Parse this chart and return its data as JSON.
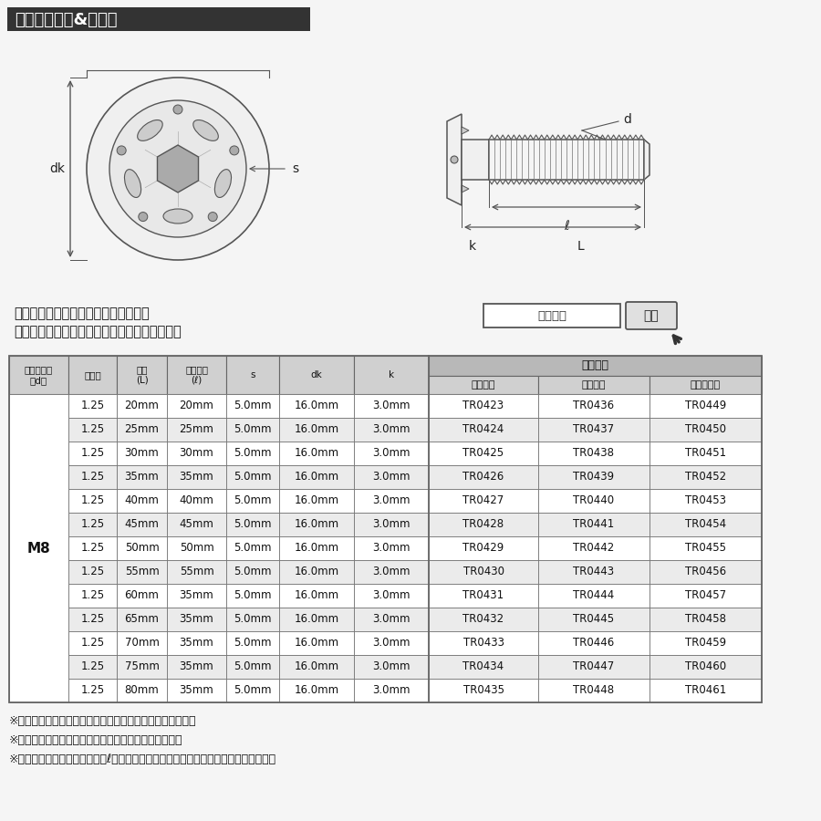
{
  "title": "ラインアップ&サイズ",
  "title_bg": "#333333",
  "title_color": "#ffffff",
  "bg_color": "#f5f5f5",
  "search_text1": "ストア内検索に商品番号を入力すると",
  "search_text2": "　　お探しの商品に素早くアクセスできます。",
  "search_box_label": "商品番号",
  "search_btn_label": "検索",
  "table_header_touten": "当店品番",
  "table_headers_left": [
    "ネジの呼び\n（d）",
    "ピッチ",
    "長さ\n(L)",
    "ネジ長さ\n(ℓ)",
    "s",
    "dk",
    "k"
  ],
  "table_headers_right": [
    "シルバー",
    "ゴールド",
    "焼きチタン"
  ],
  "row_label": "M8",
  "rows": [
    [
      "1.25",
      "20mm",
      "20mm",
      "5.0mm",
      "16.0mm",
      "3.0mm",
      "TR0423",
      "TR0436",
      "TR0449"
    ],
    [
      "1.25",
      "25mm",
      "25mm",
      "5.0mm",
      "16.0mm",
      "3.0mm",
      "TR0424",
      "TR0437",
      "TR0450"
    ],
    [
      "1.25",
      "30mm",
      "30mm",
      "5.0mm",
      "16.0mm",
      "3.0mm",
      "TR0425",
      "TR0438",
      "TR0451"
    ],
    [
      "1.25",
      "35mm",
      "35mm",
      "5.0mm",
      "16.0mm",
      "3.0mm",
      "TR0426",
      "TR0439",
      "TR0452"
    ],
    [
      "1.25",
      "40mm",
      "40mm",
      "5.0mm",
      "16.0mm",
      "3.0mm",
      "TR0427",
      "TR0440",
      "TR0453"
    ],
    [
      "1.25",
      "45mm",
      "45mm",
      "5.0mm",
      "16.0mm",
      "3.0mm",
      "TR0428",
      "TR0441",
      "TR0454"
    ],
    [
      "1.25",
      "50mm",
      "50mm",
      "5.0mm",
      "16.0mm",
      "3.0mm",
      "TR0429",
      "TR0442",
      "TR0455"
    ],
    [
      "1.25",
      "55mm",
      "55mm",
      "5.0mm",
      "16.0mm",
      "3.0mm",
      "TR0430",
      "TR0443",
      "TR0456"
    ],
    [
      "1.25",
      "60mm",
      "35mm",
      "5.0mm",
      "16.0mm",
      "3.0mm",
      "TR0431",
      "TR0444",
      "TR0457"
    ],
    [
      "1.25",
      "65mm",
      "35mm",
      "5.0mm",
      "16.0mm",
      "3.0mm",
      "TR0432",
      "TR0445",
      "TR0458"
    ],
    [
      "1.25",
      "70mm",
      "35mm",
      "5.0mm",
      "16.0mm",
      "3.0mm",
      "TR0433",
      "TR0446",
      "TR0459"
    ],
    [
      "1.25",
      "75mm",
      "35mm",
      "5.0mm",
      "16.0mm",
      "3.0mm",
      "TR0434",
      "TR0447",
      "TR0460"
    ],
    [
      "1.25",
      "80mm",
      "35mm",
      "5.0mm",
      "16.0mm",
      "3.0mm",
      "TR0435",
      "TR0448",
      "TR0461"
    ]
  ],
  "notes": [
    "※記載の重量は平均値です。個体により誤差がございます。",
    "※虹色は個体差により着色が異なる場合がございます。",
    "※製造過程の都合でネジ長さ（ℓ）が変わる場合がございます。予めご了承ください。"
  ],
  "header_bg": "#d0d0d0",
  "header_top_bg": "#c0c0c0",
  "row_alt_bg": "#ebebeb",
  "row_bg": "#ffffff",
  "border_color": "#666666",
  "text_color": "#111111",
  "diagram_line_color": "#555555",
  "diagram_fill": "#f0f0f0"
}
